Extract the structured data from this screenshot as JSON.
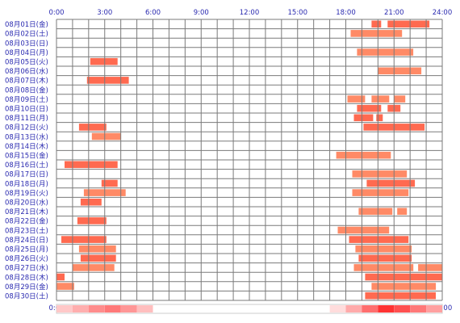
{
  "chart_data": {
    "type": "bar",
    "orientation": "horizontal-timeline",
    "x_ticks": [
      "0:00",
      "3:00",
      "6:00",
      "9:00",
      "12:00",
      "15:00",
      "18:00",
      "21:00",
      "24:00"
    ],
    "xlim": [
      0,
      24
    ],
    "grid": true,
    "colors": {
      "bar_a": "#ff6a50",
      "bar_b": "#ff8a66",
      "grid": "#7a7a7a",
      "label": "#2a2ab0"
    },
    "days": [
      {
        "label": "08月01日(金)",
        "bars": [
          [
            19.6,
            20.2,
            "a"
          ],
          [
            20.6,
            23.2,
            "a"
          ]
        ]
      },
      {
        "label": "08月02日(土)",
        "bars": [
          [
            18.3,
            21.5,
            "b"
          ]
        ]
      },
      {
        "label": "08月03日(日)",
        "bars": []
      },
      {
        "label": "08月04日(月)",
        "bars": [
          [
            18.7,
            22.2,
            "b"
          ]
        ]
      },
      {
        "label": "08月05日(火)",
        "bars": [
          [
            2.1,
            3.8,
            "a"
          ]
        ]
      },
      {
        "label": "08月06日(水)",
        "bars": [
          [
            20.0,
            22.7,
            "b"
          ]
        ]
      },
      {
        "label": "08月07日(木)",
        "bars": [
          [
            1.9,
            4.5,
            "a"
          ]
        ]
      },
      {
        "label": "08月08日(金)",
        "bars": []
      },
      {
        "label": "08月09日(土)",
        "bars": [
          [
            18.1,
            19.2,
            "b"
          ],
          [
            19.6,
            20.7,
            "b"
          ],
          [
            21.0,
            21.7,
            "b"
          ]
        ]
      },
      {
        "label": "08月10日(日)",
        "bars": [
          [
            18.7,
            20.2,
            "a"
          ],
          [
            20.6,
            21.4,
            "a"
          ]
        ]
      },
      {
        "label": "08月11日(月)",
        "bars": [
          [
            18.5,
            19.7,
            "a"
          ],
          [
            19.9,
            20.3,
            "a"
          ]
        ]
      },
      {
        "label": "08月12日(火)",
        "bars": [
          [
            1.4,
            3.1,
            "a"
          ],
          [
            19.1,
            22.9,
            "a"
          ]
        ]
      },
      {
        "label": "08月13日(水)",
        "bars": [
          [
            2.2,
            4.0,
            "b"
          ]
        ]
      },
      {
        "label": "08月14日(木)",
        "bars": []
      },
      {
        "label": "08月15日(金)",
        "bars": [
          [
            17.4,
            20.8,
            "b"
          ]
        ]
      },
      {
        "label": "08月16日(土)",
        "bars": [
          [
            0.5,
            3.8,
            "a"
          ]
        ]
      },
      {
        "label": "08月17日(日)",
        "bars": [
          [
            18.4,
            21.8,
            "b"
          ]
        ]
      },
      {
        "label": "08月18日(月)",
        "bars": [
          [
            2.8,
            3.8,
            "a"
          ],
          [
            19.3,
            22.3,
            "a"
          ]
        ]
      },
      {
        "label": "08月19日(火)",
        "bars": [
          [
            1.7,
            4.3,
            "b"
          ],
          [
            18.4,
            21.9,
            "b"
          ]
        ]
      },
      {
        "label": "08月20日(水)",
        "bars": [
          [
            1.5,
            2.8,
            "a"
          ]
        ]
      },
      {
        "label": "08月21日(木)",
        "bars": [
          [
            18.8,
            20.9,
            "b"
          ],
          [
            21.2,
            21.8,
            "b"
          ]
        ]
      },
      {
        "label": "08月22日(金)",
        "bars": [
          [
            1.3,
            3.1,
            "a"
          ]
        ]
      },
      {
        "label": "08月23日(土)",
        "bars": [
          [
            17.5,
            20.7,
            "b"
          ]
        ]
      },
      {
        "label": "08月24日(日)",
        "bars": [
          [
            0.3,
            3.1,
            "a"
          ],
          [
            18.2,
            21.9,
            "a"
          ]
        ]
      },
      {
        "label": "08月25日(月)",
        "bars": [
          [
            1.4,
            3.7,
            "b"
          ],
          [
            18.6,
            22.1,
            "b"
          ]
        ]
      },
      {
        "label": "08月26日(火)",
        "bars": [
          [
            1.5,
            3.7,
            "a"
          ],
          [
            18.8,
            22.1,
            "a"
          ]
        ]
      },
      {
        "label": "08月27日(水)",
        "bars": [
          [
            1.0,
            3.6,
            "b"
          ],
          [
            18.5,
            22.2,
            "b"
          ],
          [
            22.5,
            24.0,
            "b"
          ]
        ]
      },
      {
        "label": "08月28日(木)",
        "bars": [
          [
            0.0,
            0.5,
            "a"
          ],
          [
            19.2,
            24.0,
            "a"
          ]
        ]
      },
      {
        "label": "08月29日(金)",
        "bars": [
          [
            0.0,
            1.1,
            "b"
          ],
          [
            19.6,
            23.6,
            "b"
          ]
        ]
      },
      {
        "label": "08月30日(土)",
        "bars": [
          [
            19.2,
            23.6,
            "a"
          ]
        ]
      }
    ],
    "density_bar": [
      0.15,
      0.28,
      0.45,
      0.55,
      0.4,
      0.2,
      0,
      0,
      0,
      0,
      0,
      0,
      0,
      0,
      0,
      0,
      0,
      0.05,
      0.3,
      0.6,
      0.9,
      0.75,
      0.55,
      0.35
    ]
  }
}
